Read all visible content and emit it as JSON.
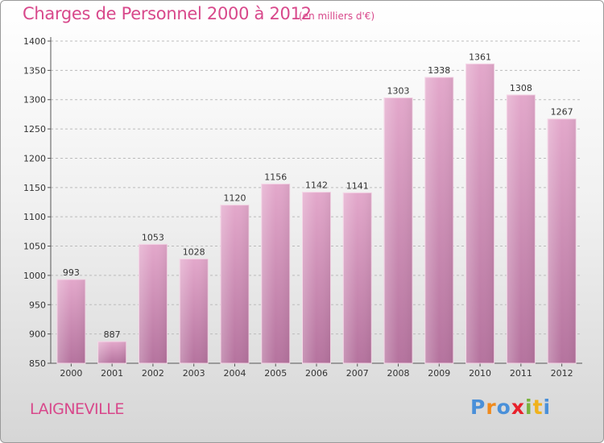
{
  "header": {
    "title": "Charges de Personnel 2000 à 2012",
    "subtitle": "(en milliers d'€)"
  },
  "footer": {
    "place": "LAIGNEVILLE",
    "logo": {
      "letters": [
        "P",
        "r",
        "o",
        "x",
        "i",
        "t",
        "i"
      ],
      "colors": [
        "#4a90d9",
        "#f08a1c",
        "#4a90d9",
        "#e8212b",
        "#7ab33e",
        "#f0b21c",
        "#4a90d9"
      ]
    }
  },
  "chart_data": {
    "type": "bar",
    "title": "Charges de Personnel 2000 à 2012",
    "subtitle": "(en milliers d'€)",
    "categories": [
      "2000",
      "2001",
      "2002",
      "2003",
      "2004",
      "2005",
      "2006",
      "2007",
      "2008",
      "2009",
      "2010",
      "2011",
      "2012"
    ],
    "values": [
      993,
      887,
      1053,
      1028,
      1120,
      1156,
      1142,
      1141,
      1303,
      1338,
      1361,
      1308,
      1267
    ],
    "yticks": [
      850,
      900,
      950,
      1000,
      1050,
      1100,
      1150,
      1200,
      1250,
      1300,
      1350,
      1400
    ],
    "ylim": [
      850,
      1400
    ],
    "grid": true,
    "bar_color_top": "#e3a8cb",
    "bar_color_bottom": "#b5739e",
    "label_color": "#d8488b"
  }
}
